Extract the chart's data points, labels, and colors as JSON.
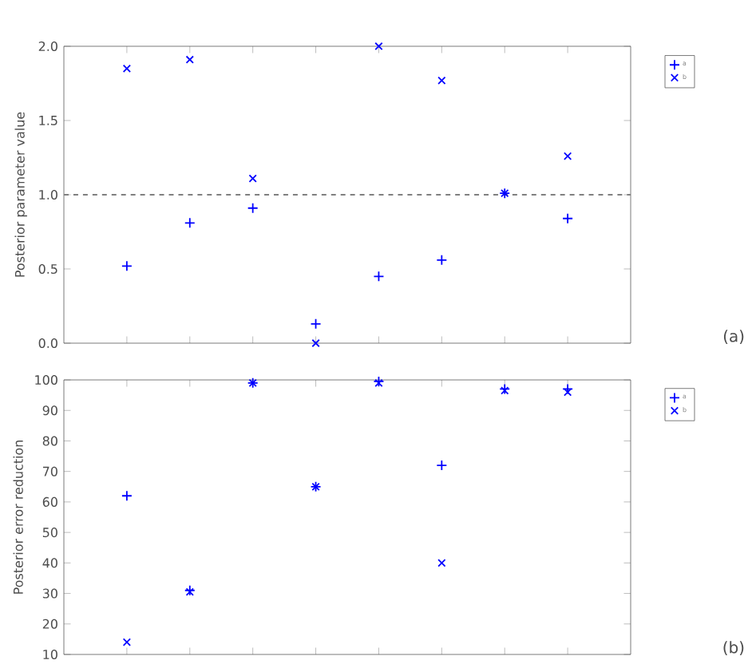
{
  "chart_data": [
    {
      "type": "scatter",
      "ylabel": "Posterior parameter value",
      "categories": [
        null,
        null,
        null,
        null,
        null,
        null,
        null,
        null
      ],
      "series": [
        {
          "name": "a",
          "color": "#0000ff",
          "marker": "plus",
          "values": [
            0.52,
            0.81,
            0.91,
            0.13,
            0.45,
            0.56,
            1.01,
            0.84
          ]
        },
        {
          "name": "b",
          "color": "#0000ff",
          "marker": "cross",
          "values": [
            1.85,
            1.91,
            1.11,
            0.0,
            2.0,
            1.77,
            1.01,
            1.26
          ]
        }
      ],
      "ylim": [
        0,
        2
      ],
      "yticks": [
        {
          "value": 0,
          "label": "0.0"
        },
        0.5,
        {
          "value": 1,
          "label": "1.0"
        },
        1.5,
        {
          "value": 2,
          "label": "2.0"
        }
      ],
      "ref_lines": [
        {
          "axis": "y",
          "value": 1.0,
          "color": "#808080",
          "line_style": "dashed"
        }
      ],
      "legend": "top right",
      "tick_labels": "y",
      "annotations": [
        "(a)"
      ]
    },
    {
      "type": "scatter",
      "ylabel": "Posterior error reduction",
      "categories": [
        null,
        null,
        null,
        null,
        null,
        null,
        null,
        null
      ],
      "series": [
        {
          "name": "a",
          "color": "#0000ff",
          "marker": "plus",
          "values": [
            62,
            31,
            99,
            65,
            99.5,
            72,
            97,
            97
          ]
        },
        {
          "name": "b",
          "color": "#0000ff",
          "marker": "cross",
          "values": [
            14,
            30.5,
            99,
            65,
            99,
            40,
            96.5,
            96
          ]
        }
      ],
      "ylim": [
        10,
        100
      ],
      "yticks": [
        10,
        20,
        30,
        40,
        50,
        60,
        70,
        80,
        90,
        100
      ],
      "legend": "top right",
      "tick_labels": "y",
      "annotations": [
        "(b)"
      ]
    }
  ]
}
